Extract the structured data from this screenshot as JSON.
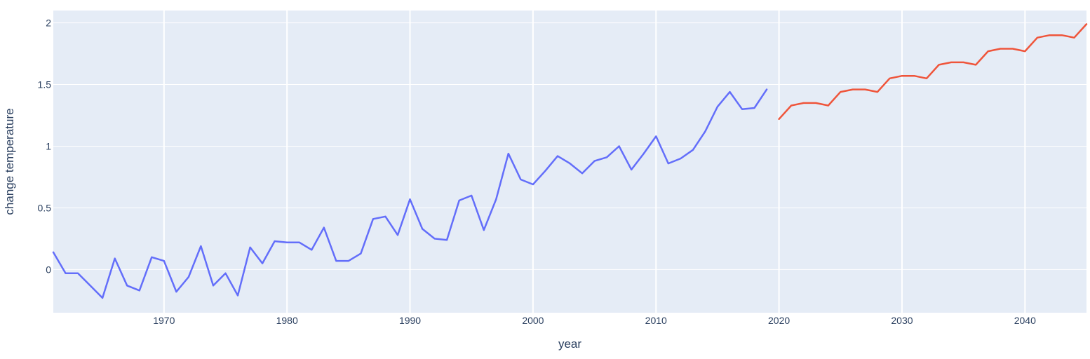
{
  "chart_data": {
    "type": "line",
    "title": "",
    "xlabel": "year",
    "ylabel": "change temperature",
    "xlim": [
      1961,
      2045
    ],
    "ylim": [
      -0.35,
      2.1
    ],
    "grid": true,
    "legend": "none",
    "x_ticks": [
      1970,
      1980,
      1990,
      2000,
      2010,
      2020,
      2030,
      2040
    ],
    "x_tick_labels": [
      "1970",
      "1980",
      "1990",
      "2000",
      "2010",
      "2020",
      "2030",
      "2040"
    ],
    "y_ticks": [
      0,
      0.5,
      1,
      1.5,
      2
    ],
    "y_tick_labels": [
      "0",
      "0.5",
      "1",
      "1.5",
      "2"
    ],
    "colors": {
      "plot_bg": "#e5ecf6",
      "grid": "#ffffff",
      "text": "#2a3f5f"
    },
    "series": [
      {
        "color": "#636efa",
        "x": [
          1961,
          1962,
          1963,
          1964,
          1965,
          1966,
          1967,
          1968,
          1969,
          1970,
          1971,
          1972,
          1973,
          1974,
          1975,
          1976,
          1977,
          1978,
          1979,
          1980,
          1981,
          1982,
          1983,
          1984,
          1985,
          1986,
          1987,
          1988,
          1989,
          1990,
          1991,
          1992,
          1993,
          1994,
          1995,
          1996,
          1997,
          1998,
          1999,
          2000,
          2001,
          2002,
          2003,
          2004,
          2005,
          2006,
          2007,
          2008,
          2009,
          2010,
          2011,
          2012,
          2013,
          2014,
          2015,
          2016,
          2017,
          2018,
          2019
        ],
        "values": [
          0.14,
          -0.03,
          -0.03,
          -0.13,
          -0.23,
          0.09,
          -0.13,
          -0.17,
          0.1,
          0.07,
          -0.18,
          -0.06,
          0.19,
          -0.13,
          -0.03,
          -0.21,
          0.18,
          0.05,
          0.23,
          0.22,
          0.22,
          0.16,
          0.34,
          0.07,
          0.07,
          0.13,
          0.41,
          0.43,
          0.28,
          0.57,
          0.33,
          0.25,
          0.24,
          0.56,
          0.6,
          0.32,
          0.57,
          0.94,
          0.73,
          0.69,
          0.8,
          0.92,
          0.86,
          0.78,
          0.88,
          0.91,
          1.0,
          0.81,
          0.94,
          1.08,
          0.86,
          0.9,
          0.97,
          1.12,
          1.32,
          1.44,
          1.3,
          1.31,
          1.46
        ]
      },
      {
        "color": "#ef553b",
        "x": [
          2020,
          2021,
          2022,
          2023,
          2024,
          2025,
          2026,
          2027,
          2028,
          2029,
          2030,
          2031,
          2032,
          2033,
          2034,
          2035,
          2036,
          2037,
          2038,
          2039,
          2040,
          2041,
          2042,
          2043,
          2044,
          2045
        ],
        "values": [
          1.22,
          1.33,
          1.35,
          1.35,
          1.33,
          1.44,
          1.46,
          1.46,
          1.44,
          1.55,
          1.57,
          1.57,
          1.55,
          1.66,
          1.68,
          1.68,
          1.66,
          1.77,
          1.79,
          1.79,
          1.77,
          1.88,
          1.9,
          1.9,
          1.88,
          1.99
        ]
      }
    ]
  }
}
